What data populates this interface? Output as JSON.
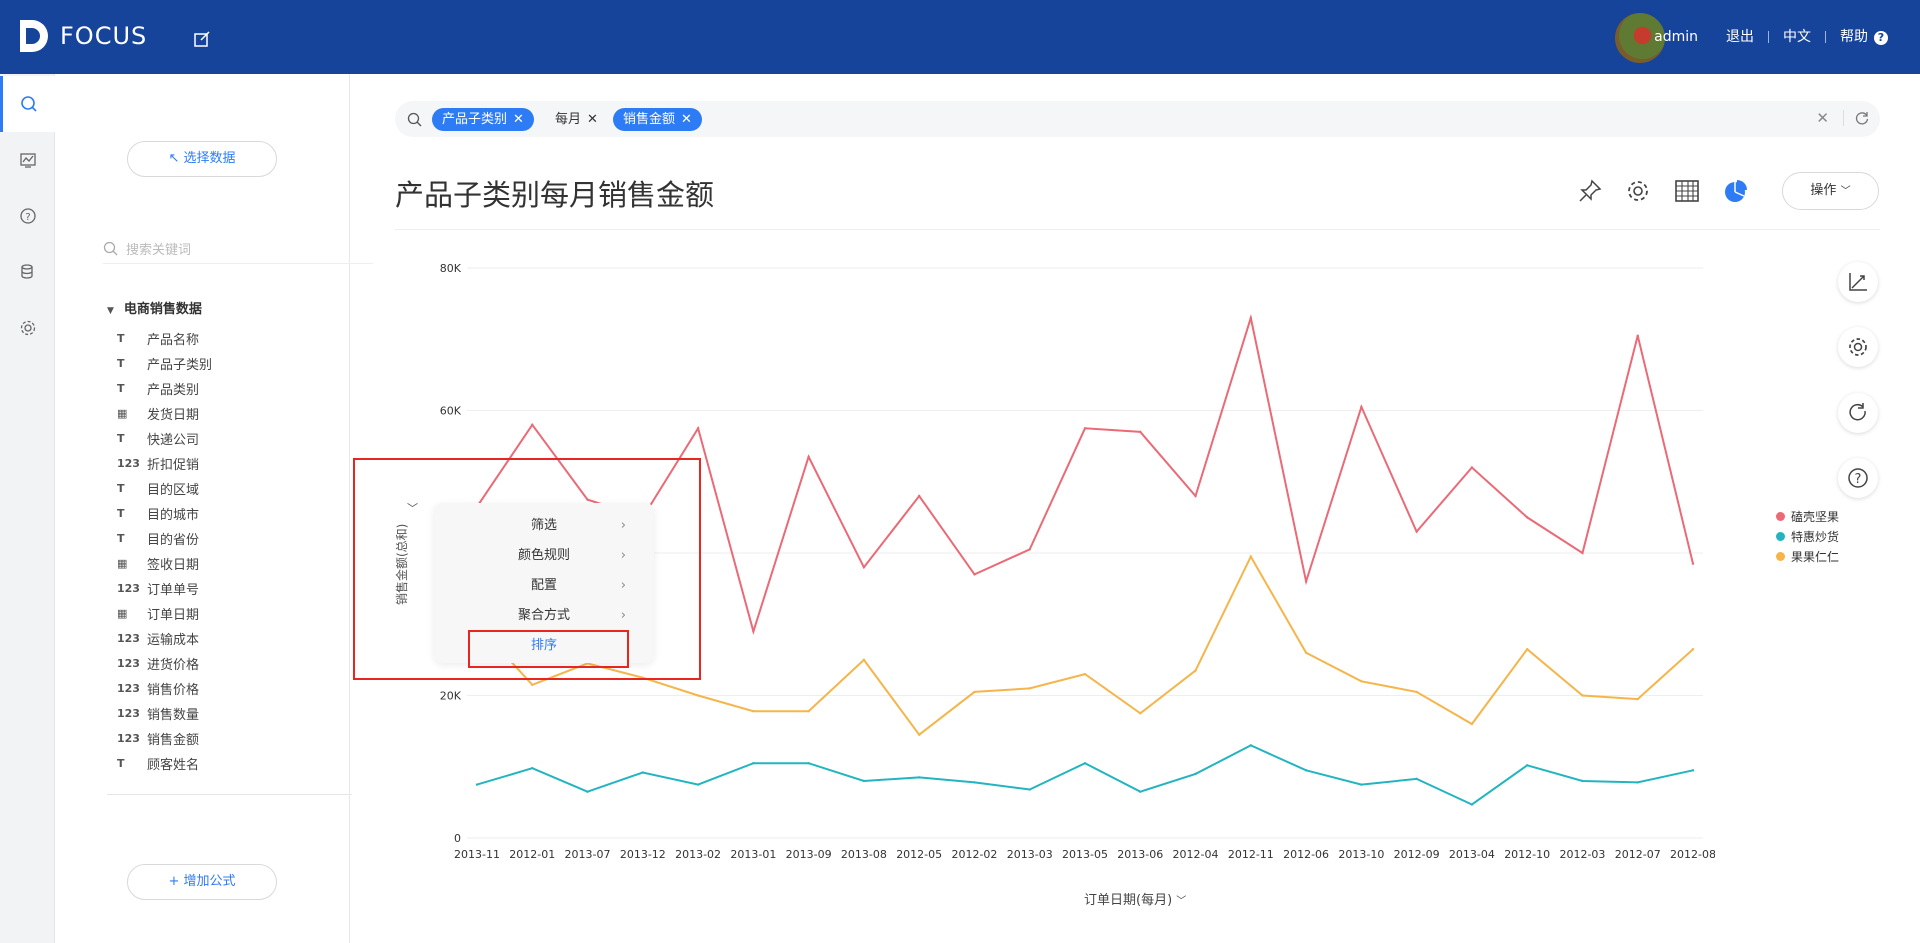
{
  "app": {
    "name": "FOCUS",
    "user": "admin",
    "logout": "退出",
    "lang": "中文",
    "help": "帮助"
  },
  "colors": {
    "topbar": "#17449b",
    "accent": "#2d7cf6",
    "series_a": "#f5b54a",
    "series_b": "#22b5c0",
    "series_c": "#ea6a76",
    "highlight": "#e8251f"
  },
  "rail": {
    "items": [
      "search-icon",
      "dashboard-icon",
      "question-icon",
      "database-icon",
      "gear-icon"
    ]
  },
  "panel": {
    "select_data": "↖ 选择数据",
    "search_placeholder": "搜索关键词",
    "dataset": "电商销售数据",
    "fields": [
      {
        "icon": "T",
        "label": "产品名称"
      },
      {
        "icon": "T",
        "label": "产品子类别"
      },
      {
        "icon": "T",
        "label": "产品类别"
      },
      {
        "icon": "▦",
        "label": "发货日期"
      },
      {
        "icon": "T",
        "label": "快递公司"
      },
      {
        "icon": "123",
        "label": "折扣促销"
      },
      {
        "icon": "T",
        "label": "目的区域"
      },
      {
        "icon": "T",
        "label": "目的城市"
      },
      {
        "icon": "T",
        "label": "目的省份"
      },
      {
        "icon": "▦",
        "label": "签收日期"
      },
      {
        "icon": "123",
        "label": "订单单号"
      },
      {
        "icon": "▦",
        "label": "订单日期"
      },
      {
        "icon": "123",
        "label": "运输成本"
      },
      {
        "icon": "123",
        "label": "进货价格"
      },
      {
        "icon": "123",
        "label": "销售价格"
      },
      {
        "icon": "123",
        "label": "销售数量"
      },
      {
        "icon": "123",
        "label": "销售金额"
      },
      {
        "icon": "T",
        "label": "顾客姓名"
      }
    ],
    "add_formula": "+ 增加公式"
  },
  "search": {
    "tags": [
      "产品子类别",
      "每月",
      "销售金额"
    ]
  },
  "chart_title": "产品子类别每月销售金额",
  "ops": "操作",
  "context_menu": {
    "items": [
      "筛选",
      "颜色规则",
      "配置",
      "聚合方式",
      "排序"
    ]
  },
  "chart_data": {
    "type": "line",
    "ylabel": "销售金额(总和)",
    "xlabel": "订单日期(每月)",
    "ylim": [
      0,
      80000
    ],
    "yticks": [
      "0",
      "20K",
      "40K",
      "60K",
      "80K"
    ],
    "legend_position": "right",
    "categories": [
      "2013-11",
      "2012-01",
      "2013-07",
      "2013-12",
      "2013-02",
      "2013-01",
      "2013-09",
      "2013-08",
      "2012-05",
      "2012-02",
      "2013-03",
      "2013-05",
      "2013-06",
      "2012-04",
      "2012-11",
      "2012-06",
      "2013-10",
      "2012-09",
      "2013-04",
      "2012-10",
      "2012-03",
      "2012-07",
      "2012-08"
    ],
    "series": [
      {
        "name": "果果仁仁",
        "color": "#f5b54a",
        "values": [
          30000,
          21500,
          24500,
          22500,
          20000,
          17800,
          17800,
          25000,
          14500,
          20500,
          21000,
          23000,
          17500,
          23500,
          39500,
          26000,
          22000,
          20500,
          16000,
          26500,
          20000,
          19500,
          26500
        ]
      },
      {
        "name": "特惠炒货",
        "color": "#22b5c0",
        "values": [
          7500,
          9800,
          6500,
          9200,
          7500,
          10500,
          10500,
          8000,
          8500,
          7800,
          6800,
          10500,
          6500,
          9000,
          13000,
          9500,
          7500,
          8300,
          4700,
          10200,
          8000,
          7800,
          9500
        ]
      },
      {
        "name": "磕壳坚果",
        "color": "#ea6a76",
        "values": [
          46500,
          58000,
          47500,
          45000,
          57500,
          29000,
          53500,
          38000,
          48000,
          37000,
          40500,
          57500,
          57000,
          48000,
          73000,
          36000,
          60500,
          43000,
          52000,
          45000,
          40000,
          70500,
          38500
        ]
      }
    ]
  }
}
